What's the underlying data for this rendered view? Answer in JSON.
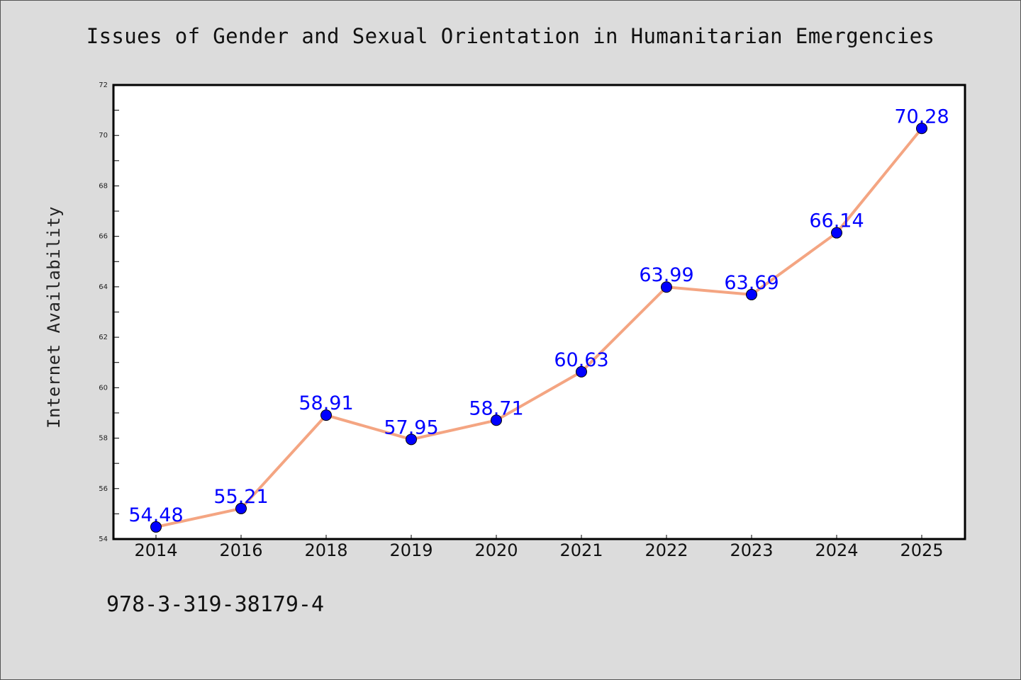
{
  "chart_data": {
    "type": "line",
    "title": "Issues of Gender and Sexual Orientation in Humanitarian Emergencies",
    "xlabel": "",
    "ylabel": "Internet Availability",
    "categories": [
      "2014",
      "2016",
      "2018",
      "2019",
      "2020",
      "2021",
      "2022",
      "2023",
      "2024",
      "2025"
    ],
    "series": [
      {
        "values": [
          54.48,
          55.21,
          58.91,
          57.95,
          58.71,
          60.63,
          63.99,
          63.69,
          66.14,
          70.28
        ]
      }
    ],
    "data_labels": [
      "54.48",
      "55.21",
      "58.91",
      "57.95",
      "58.71",
      "60.63",
      "63.99",
      "63.69",
      "66.14",
      "70.28"
    ],
    "ylim": [
      54,
      72
    ],
    "yticks": [
      "54",
      "56",
      "58",
      "60",
      "62",
      "64",
      "66",
      "68",
      "70",
      "72"
    ],
    "grid": false,
    "colors": {
      "line": "#f4a582",
      "marker": "#0000ff",
      "label": "#0000ff",
      "plot_bg": "#ffffff",
      "page_bg": "#dcdcdc"
    }
  },
  "footnote": "978-3-319-38179-4"
}
